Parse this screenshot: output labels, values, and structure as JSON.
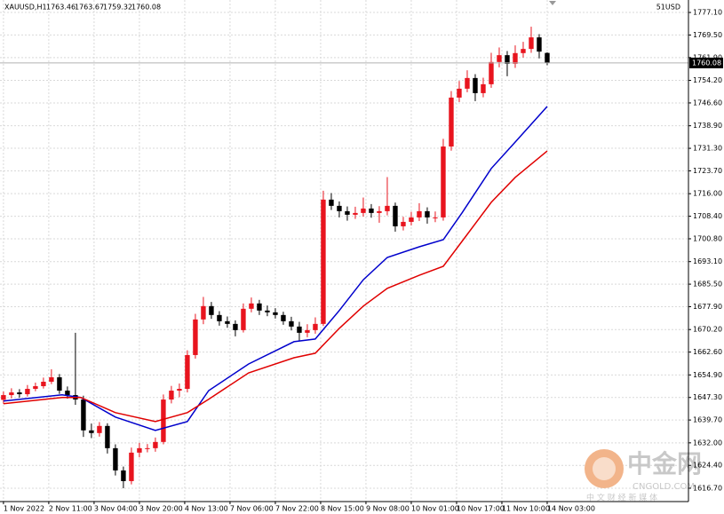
{
  "chart_data": {
    "type": "candlestick",
    "title": "XAUUSD,H1",
    "corner_label": "51USD",
    "up_color": "#e8141e",
    "down_color": "#000000",
    "grid": true,
    "last_price_line": true,
    "xlim": [
      -1.3,
      257
    ],
    "ylim": [
      1612.2,
      1781.3
    ],
    "xticks": [
      {
        "value": 0,
        "label": "1 Nov 2022"
      },
      {
        "value": 17,
        "label": "2 Nov 11:00"
      },
      {
        "value": 34,
        "label": "3 Nov 04:00"
      },
      {
        "value": 51,
        "label": "3 Nov 20:00"
      },
      {
        "value": 68,
        "label": "4 Nov 13:00"
      },
      {
        "value": 85,
        "label": "7 Nov 06:00"
      },
      {
        "value": 102,
        "label": "7 Nov 22:00"
      },
      {
        "value": 119,
        "label": "8 Nov 15:00"
      },
      {
        "value": 136,
        "label": "9 Nov 08:00"
      },
      {
        "value": 153,
        "label": "10 Nov 01:00"
      },
      {
        "value": 170,
        "label": "10 Nov 17:00"
      },
      {
        "value": 187,
        "label": "11 Nov 10:00"
      },
      {
        "value": 204,
        "label": "14 Nov 03:00"
      }
    ],
    "yticks": [
      {
        "value": 1777.1,
        "label": "1777.10"
      },
      {
        "value": 1769.5,
        "label": "1769.50"
      },
      {
        "value": 1761.9,
        "label": "1761.90"
      },
      {
        "value": 1754.2,
        "label": "1754.20"
      },
      {
        "value": 1746.6,
        "label": "1746.60"
      },
      {
        "value": 1738.9,
        "label": "1738.90"
      },
      {
        "value": 1731.3,
        "label": "1731.30"
      },
      {
        "value": 1723.7,
        "label": "1723.70"
      },
      {
        "value": 1716,
        "label": "1716.00"
      },
      {
        "value": 1708.4,
        "label": "1708.40"
      },
      {
        "value": 1700.8,
        "label": "1700.80"
      },
      {
        "value": 1693.1,
        "label": "1693.10"
      },
      {
        "value": 1685.5,
        "label": "1685.50"
      },
      {
        "value": 1677.9,
        "label": "1677.90"
      },
      {
        "value": 1670.2,
        "label": "1670.20"
      },
      {
        "value": 1662.6,
        "label": "1662.60"
      },
      {
        "value": 1654.9,
        "label": "1654.90"
      },
      {
        "value": 1647.3,
        "label": "1647.30"
      },
      {
        "value": 1639.7,
        "label": "1639.70"
      },
      {
        "value": 1632,
        "label": "1632.00"
      },
      {
        "value": 1624.4,
        "label": "1624.40"
      },
      {
        "value": 1616.7,
        "label": "1616.70"
      }
    ],
    "x": [
      0,
      3,
      6,
      9,
      12,
      15,
      18,
      21,
      24,
      27,
      30,
      33,
      36,
      39,
      42,
      45,
      48,
      51,
      54,
      57,
      60,
      63,
      66,
      69,
      72,
      75,
      78,
      81,
      84,
      87,
      90,
      93,
      96,
      99,
      102,
      105,
      108,
      111,
      114,
      117,
      120,
      123,
      126,
      129,
      132,
      135,
      138,
      141,
      144,
      147,
      150,
      153,
      156,
      159,
      162,
      165,
      168,
      171,
      174,
      177,
      180,
      183,
      186,
      189,
      192,
      195,
      198,
      201,
      204
    ],
    "open": [
      1646.5,
      1648.1,
      1649.0,
      1648.4,
      1650.2,
      1651.1,
      1652.6,
      1654.1,
      1649.6,
      1648.1,
      1646.6,
      1636.2,
      1635.3,
      1637.7,
      1630.2,
      1622.7,
      1619.1,
      1628.7,
      1630.2,
      1630.2,
      1632.3,
      1646.6,
      1649.6,
      1650.2,
      1661.6,
      1673.6,
      1678.1,
      1675.1,
      1673.0,
      1672.1,
      1670.0,
      1677.2,
      1679.0,
      1676.6,
      1676.0,
      1675.1,
      1673.0,
      1671.2,
      1669.1,
      1670.0,
      1672.1,
      1714.0,
      1711.9,
      1710.1,
      1708.9,
      1709.5,
      1711.0,
      1709.5,
      1710.1,
      1711.9,
      1705.0,
      1706.5,
      1708.0,
      1710.1,
      1708.0,
      1708.0,
      1731.9,
      1748.4,
      1751.4,
      1755.0,
      1749.9,
      1752.9,
      1760.4,
      1762.7,
      1759.8,
      1763.4,
      1764.8,
      1768.7,
      1763.46
    ],
    "high": [
      1649.3,
      1650.4,
      1650.1,
      1651.5,
      1652.3,
      1654.0,
      1656.8,
      1655.2,
      1651.0,
      1669.1,
      1647.9,
      1638.5,
      1639.0,
      1638.6,
      1631.5,
      1624.0,
      1630.4,
      1632.0,
      1631.6,
      1633.8,
      1648.3,
      1651.2,
      1652.0,
      1663.2,
      1675.5,
      1681.2,
      1679.5,
      1676.4,
      1674.6,
      1673.3,
      1679.0,
      1681.0,
      1680.2,
      1678.3,
      1677.4,
      1676.2,
      1674.5,
      1672.8,
      1672.0,
      1674.3,
      1717.0,
      1716.2,
      1713.4,
      1711.7,
      1711.6,
      1714.7,
      1712.5,
      1711.8,
      1721.6,
      1713.0,
      1708.2,
      1709.9,
      1712.8,
      1711.4,
      1710.0,
      1734.5,
      1750.6,
      1754.0,
      1757.6,
      1756.3,
      1755.1,
      1763.5,
      1765.3,
      1764.1,
      1766.0,
      1767.2,
      1772.3,
      1769.8,
      1763.67
    ],
    "low": [
      1645.2,
      1647.0,
      1647.2,
      1647.6,
      1649.4,
      1650.3,
      1651.8,
      1648.5,
      1646.9,
      1644.8,
      1634.0,
      1633.6,
      1634.1,
      1628.4,
      1621.0,
      1616.7,
      1618.0,
      1627.1,
      1628.8,
      1629.0,
      1631.5,
      1645.3,
      1647.4,
      1649.0,
      1660.4,
      1672.0,
      1673.8,
      1671.5,
      1670.8,
      1667.9,
      1669.2,
      1676.0,
      1675.1,
      1674.7,
      1673.9,
      1671.8,
      1669.9,
      1666.5,
      1667.6,
      1668.8,
      1671.4,
      1710.5,
      1708.0,
      1706.9,
      1707.5,
      1708.3,
      1707.9,
      1706.2,
      1708.7,
      1703.2,
      1703.6,
      1705.3,
      1706.8,
      1705.9,
      1706.4,
      1706.9,
      1730.5,
      1746.9,
      1750.2,
      1747.2,
      1748.5,
      1751.7,
      1758.6,
      1755.6,
      1758.4,
      1761.9,
      1763.5,
      1761.6,
      1759.32
    ],
    "close": [
      1648.1,
      1649.0,
      1648.4,
      1650.2,
      1651.1,
      1652.6,
      1654.1,
      1649.6,
      1648.1,
      1646.6,
      1636.2,
      1635.3,
      1637.7,
      1630.2,
      1622.7,
      1619.1,
      1628.7,
      1630.2,
      1630.2,
      1632.3,
      1646.6,
      1649.6,
      1650.2,
      1661.6,
      1673.6,
      1678.1,
      1675.1,
      1673.0,
      1672.1,
      1670.0,
      1677.2,
      1679.0,
      1676.6,
      1676.0,
      1675.1,
      1673.0,
      1671.2,
      1669.1,
      1670.0,
      1672.1,
      1714.0,
      1711.9,
      1710.1,
      1708.9,
      1709.5,
      1711.0,
      1709.5,
      1710.1,
      1711.9,
      1705.0,
      1706.5,
      1708.0,
      1710.1,
      1708.0,
      1708.0,
      1731.9,
      1748.4,
      1751.4,
      1755.0,
      1749.9,
      1752.9,
      1760.4,
      1762.7,
      1759.8,
      1763.4,
      1764.8,
      1768.7,
      1763.9,
      1760.08
    ],
    "series": [
      {
        "color": "#0000cc",
        "x": [
          0,
          22,
          29,
          42,
          57,
          69,
          77,
          92,
          109,
          117,
          126,
          135,
          144,
          156,
          165,
          172,
          183,
          192,
          204
        ],
        "values": [
          1646.1,
          1648.2,
          1647.3,
          1640.7,
          1636.2,
          1639.2,
          1649.6,
          1658.6,
          1666.1,
          1667.0,
          1676.6,
          1687.0,
          1694.5,
          1698.1,
          1700.5,
          1709.5,
          1724.5,
          1733.4,
          1745.4
        ]
      },
      {
        "color": "#e00000",
        "x": [
          0,
          22,
          29,
          42,
          57,
          69,
          77,
          92,
          109,
          117,
          126,
          135,
          144,
          156,
          165,
          172,
          183,
          192,
          204
        ],
        "values": [
          1645.2,
          1647.3,
          1647.3,
          1642.2,
          1639.2,
          1642.2,
          1646.7,
          1655.6,
          1660.7,
          1662.2,
          1670.6,
          1678.1,
          1684.1,
          1688.5,
          1691.5,
          1699.9,
          1713.1,
          1721.5,
          1730.4
        ]
      }
    ]
  },
  "watermark": {
    "brand": "中金网",
    "site": "CNGOLD.COM",
    "tagline": "中 文 财 经 新 媒 体"
  }
}
